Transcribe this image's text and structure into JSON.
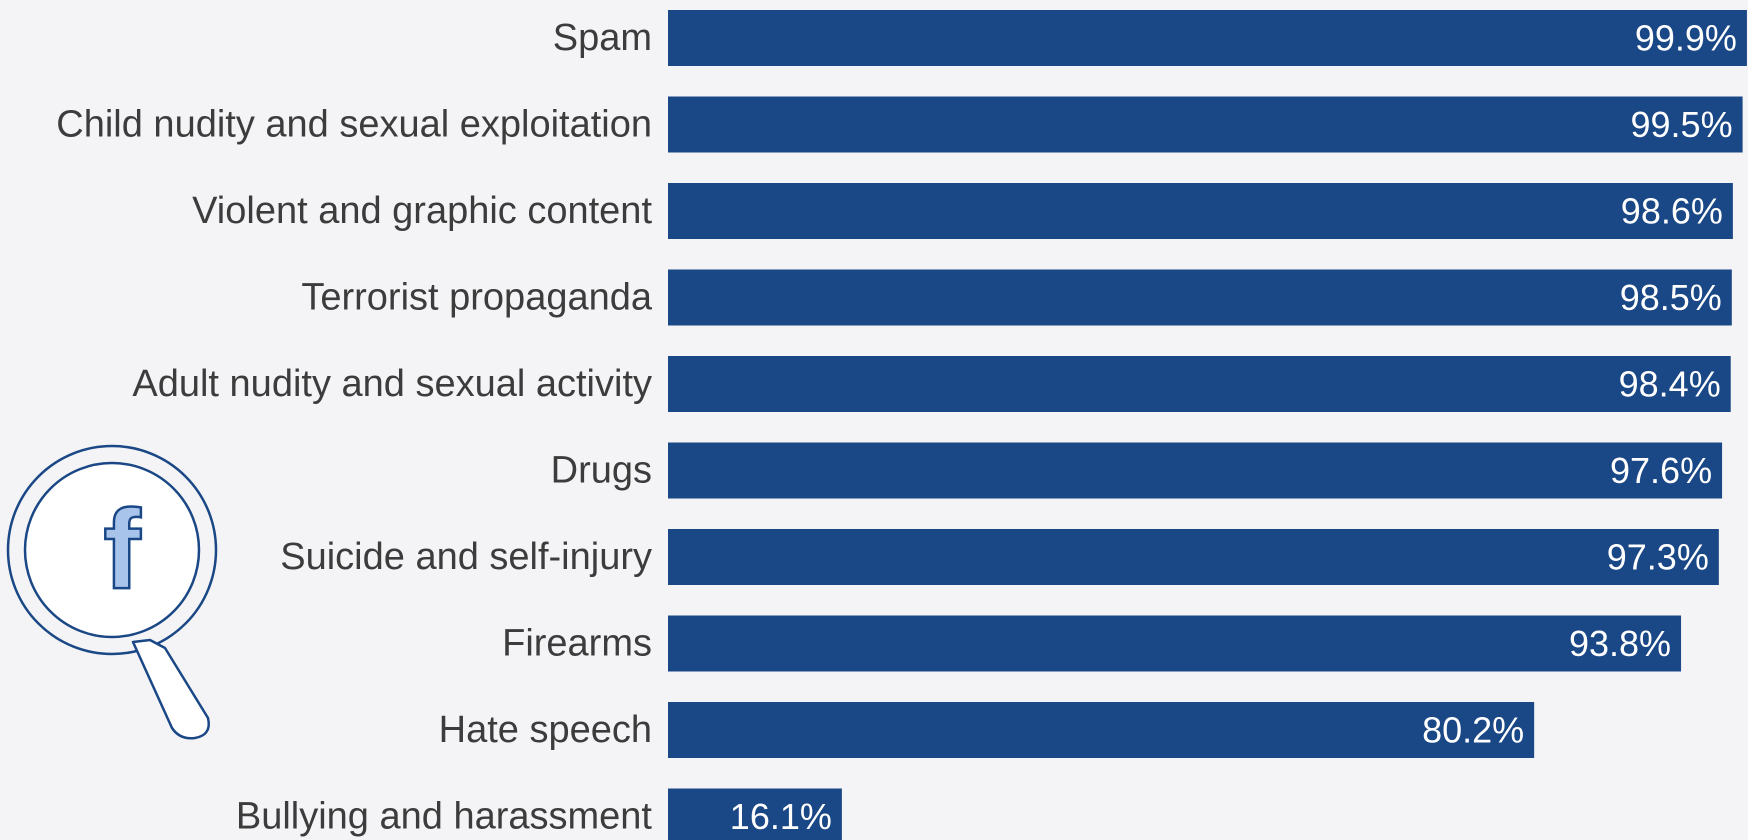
{
  "chart_data": {
    "type": "bar",
    "orientation": "horizontal",
    "categories": [
      "Spam",
      "Child nudity and sexual exploitation",
      "Violent and graphic content",
      "Terrorist propaganda",
      "Adult nudity and sexual activity",
      "Drugs",
      "Suicide and self-injury",
      "Firearms",
      "Hate speech",
      "Bullying and harassment"
    ],
    "values": [
      99.9,
      99.5,
      98.6,
      98.5,
      98.4,
      97.6,
      97.3,
      93.8,
      80.2,
      16.1
    ],
    "value_labels": [
      "99.9%",
      "99.5%",
      "98.6%",
      "98.5%",
      "98.4%",
      "97.6%",
      "97.3%",
      "93.8%",
      "80.2%",
      "16.1%"
    ],
    "xlim": [
      0,
      100
    ],
    "grid": false,
    "colors": {
      "bar": "#1a4785",
      "background": "#f4f4f6",
      "label_text": "#3c3c3c",
      "value_text": "#ffffff",
      "icon_stroke": "#1a4785",
      "icon_fill": "#a9c4ea"
    }
  },
  "decoration": {
    "icon": "magnifier-facebook-icon",
    "icon_glyph": "f"
  }
}
